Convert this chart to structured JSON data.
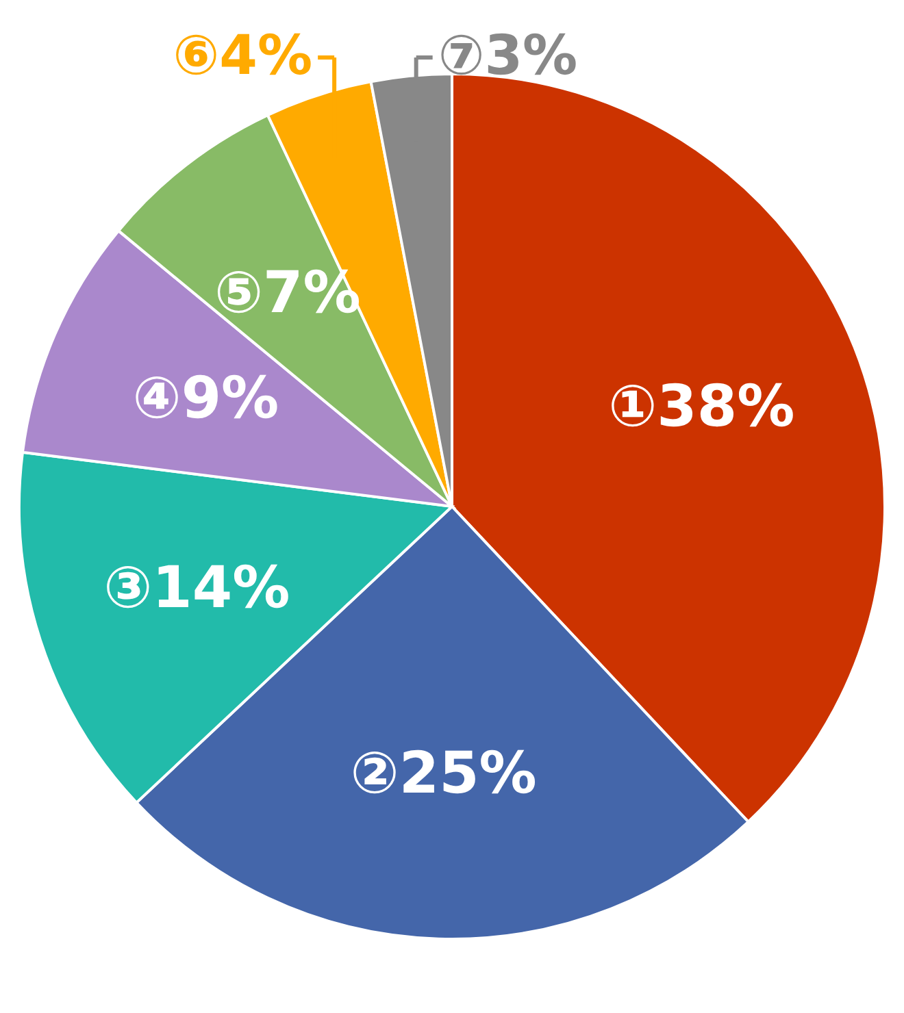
{
  "chart_data": {
    "type": "pie",
    "categories": [
      "①",
      "②",
      "③",
      "④",
      "⑤",
      "⑥",
      "⑦"
    ],
    "values": [
      38,
      25,
      14,
      9,
      7,
      4,
      3
    ],
    "value_labels": [
      "38%",
      "25%",
      "14%",
      "9%",
      "7%",
      "4%",
      "3%"
    ],
    "colors": [
      "#cc3300",
      "#4466aa",
      "#22bbaa",
      "#aa88cc",
      "#88bb66",
      "#ffaa00",
      "#888888"
    ]
  }
}
